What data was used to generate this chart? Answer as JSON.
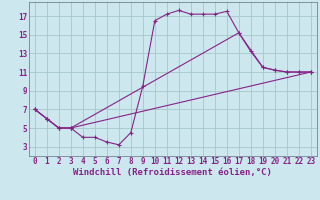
{
  "xlabel": "Windchill (Refroidissement éolien,°C)",
  "bg_color": "#cce8ee",
  "grid_color": "#aacccc",
  "line_color": "#882288",
  "xlim": [
    -0.5,
    23.5
  ],
  "ylim": [
    2,
    18.5
  ],
  "xticks": [
    0,
    1,
    2,
    3,
    4,
    5,
    6,
    7,
    8,
    9,
    10,
    11,
    12,
    13,
    14,
    15,
    16,
    17,
    18,
    19,
    20,
    21,
    22,
    23
  ],
  "yticks": [
    3,
    5,
    7,
    9,
    11,
    13,
    15,
    17
  ],
  "curve1_x": [
    0,
    1,
    2,
    3,
    4,
    5,
    6,
    7,
    8,
    9,
    10,
    11,
    12,
    13,
    14,
    15,
    16,
    17,
    18,
    19,
    20,
    21,
    22,
    23
  ],
  "curve1_y": [
    7,
    6,
    5,
    5,
    4,
    4,
    3.5,
    3.2,
    4.5,
    9.5,
    16.5,
    17.2,
    17.6,
    17.2,
    17.2,
    17.2,
    17.5,
    15.2,
    13.2,
    11.5,
    11.2,
    11.0,
    11.0,
    11.0
  ],
  "curve2_x": [
    0,
    1,
    2,
    3,
    23
  ],
  "curve2_y": [
    7,
    6,
    5,
    5,
    11.0
  ],
  "curve3_x": [
    0,
    1,
    2,
    3,
    17,
    19,
    20,
    21,
    22,
    23
  ],
  "curve3_y": [
    7,
    6,
    5,
    5,
    15.2,
    11.5,
    11.2,
    11.0,
    11.0,
    11.0
  ],
  "font_size_label": 6.5,
  "font_size_tick": 5.5,
  "marker": "+"
}
